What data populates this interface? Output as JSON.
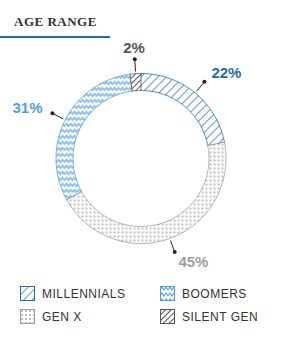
{
  "chart_data": {
    "type": "donut",
    "title": "AGE RANGE",
    "categories": [
      "MILLENNIALS",
      "GEN X",
      "BOOMERS",
      "SILENT GEN"
    ],
    "values": [
      22,
      45,
      31,
      2
    ],
    "value_labels": [
      "22%",
      "45%",
      "31%",
      "2%"
    ],
    "colors": [
      "#1b6db3",
      "#9e9e9e",
      "#4f9fde",
      "#555555"
    ],
    "data_labels": true,
    "legend": "bottom"
  }
}
